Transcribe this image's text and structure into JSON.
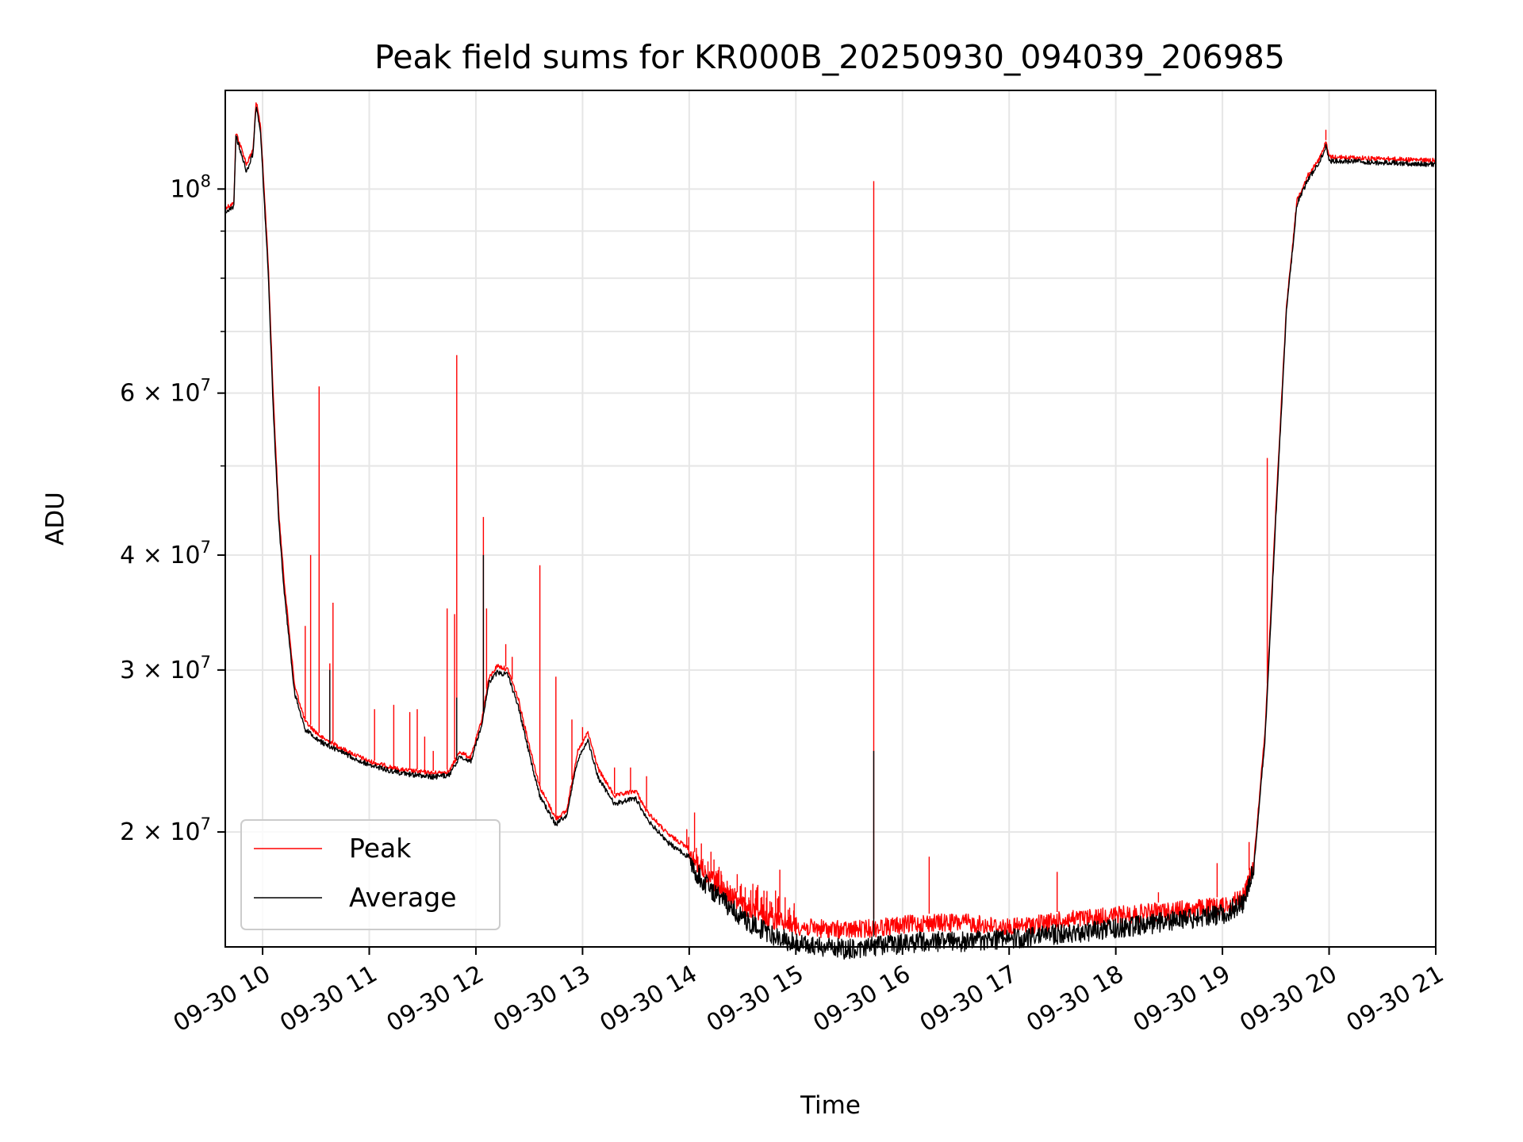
{
  "chart_data": {
    "type": "line",
    "title": "Peak field sums for KR000B_20250930_094039_206985",
    "xlabel": "Time",
    "ylabel": "ADU",
    "yscale": "log",
    "xlim": [
      9.65,
      21.0
    ],
    "ylim": [
      15000000,
      128000000
    ],
    "grid": true,
    "x_ticks": [
      {
        "value": 10,
        "label": "09-30 10"
      },
      {
        "value": 11,
        "label": "09-30 11"
      },
      {
        "value": 12,
        "label": "09-30 12"
      },
      {
        "value": 13,
        "label": "09-30 13"
      },
      {
        "value": 14,
        "label": "09-30 14"
      },
      {
        "value": 15,
        "label": "09-30 15"
      },
      {
        "value": 16,
        "label": "09-30 16"
      },
      {
        "value": 17,
        "label": "09-30 17"
      },
      {
        "value": 18,
        "label": "09-30 18"
      },
      {
        "value": 19,
        "label": "09-30 19"
      },
      {
        "value": 20,
        "label": "09-30 20"
      },
      {
        "value": 21,
        "label": "09-30 21"
      }
    ],
    "y_ticks": [
      {
        "value": 20000000,
        "mantissa": "2 × 10",
        "exp": "7"
      },
      {
        "value": 30000000,
        "mantissa": "3 × 10",
        "exp": "7"
      },
      {
        "value": 40000000,
        "mantissa": "4 × 10",
        "exp": "7"
      },
      {
        "value": 60000000,
        "mantissa": "6 × 10",
        "exp": "7"
      },
      {
        "value": 100000000,
        "mantissa": "10",
        "exp": "8"
      }
    ],
    "y_minor_ticks": [
      50000000,
      70000000,
      80000000,
      90000000
    ],
    "legend": {
      "placement": "lower-left",
      "entries": [
        "Peak",
        "Average"
      ]
    },
    "series": [
      {
        "name": "Peak",
        "color": "#ff0000",
        "noise": 0.09,
        "points": [
          [
            9.65,
            96000000
          ],
          [
            9.73,
            97000000
          ],
          [
            9.75,
            116000000
          ],
          [
            9.85,
            107000000
          ],
          [
            9.91,
            111000000
          ],
          [
            9.94,
            125000000
          ],
          [
            9.98,
            118000000
          ],
          [
            10.05,
            85000000
          ],
          [
            10.1,
            60000000
          ],
          [
            10.15,
            45000000
          ],
          [
            10.2,
            38000000
          ],
          [
            10.3,
            29000000
          ],
          [
            10.4,
            26500000
          ],
          [
            10.55,
            25500000
          ],
          [
            10.8,
            24600000
          ],
          [
            11.0,
            24000000
          ],
          [
            11.3,
            23500000
          ],
          [
            11.6,
            23300000
          ],
          [
            11.75,
            23400000
          ],
          [
            11.85,
            24600000
          ],
          [
            11.95,
            24200000
          ],
          [
            12.05,
            26500000
          ],
          [
            12.12,
            29500000
          ],
          [
            12.2,
            30500000
          ],
          [
            12.3,
            30200000
          ],
          [
            12.4,
            28000000
          ],
          [
            12.5,
            25000000
          ],
          [
            12.6,
            22500000
          ],
          [
            12.75,
            20800000
          ],
          [
            12.85,
            21200000
          ],
          [
            12.95,
            24500000
          ],
          [
            13.05,
            25800000
          ],
          [
            13.15,
            23500000
          ],
          [
            13.3,
            22000000
          ],
          [
            13.5,
            22300000
          ],
          [
            13.6,
            21200000
          ],
          [
            13.8,
            20000000
          ],
          [
            14.0,
            19300000
          ],
          [
            14.2,
            18200000
          ],
          [
            14.5,
            17000000
          ],
          [
            14.8,
            16400000
          ],
          [
            15.1,
            16100000
          ],
          [
            15.5,
            16000000
          ],
          [
            15.75,
            16100000
          ],
          [
            16.2,
            16300000
          ],
          [
            16.6,
            16300000
          ],
          [
            17.0,
            16100000
          ],
          [
            17.5,
            16400000
          ],
          [
            18.0,
            16600000
          ],
          [
            18.5,
            16800000
          ],
          [
            19.0,
            17000000
          ],
          [
            19.2,
            17400000
          ],
          [
            19.3,
            19000000
          ],
          [
            19.4,
            26000000
          ],
          [
            19.5,
            45000000
          ],
          [
            19.6,
            75000000
          ],
          [
            19.7,
            98000000
          ],
          [
            19.8,
            104000000
          ],
          [
            19.9,
            108000000
          ],
          [
            19.97,
            113000000
          ],
          [
            20.0,
            109000000
          ],
          [
            21.0,
            108000000
          ]
        ],
        "spikes": [
          [
            10.4,
            33500000
          ],
          [
            10.45,
            40000000
          ],
          [
            10.53,
            61000000
          ],
          [
            10.63,
            30500000
          ],
          [
            10.66,
            35500000
          ],
          [
            11.05,
            27200000
          ],
          [
            11.23,
            27500000
          ],
          [
            11.38,
            27000000
          ],
          [
            11.45,
            27200000
          ],
          [
            11.52,
            25400000
          ],
          [
            11.6,
            24500000
          ],
          [
            11.73,
            35000000
          ],
          [
            11.8,
            34500000
          ],
          [
            11.82,
            66000000
          ],
          [
            12.07,
            44000000
          ],
          [
            12.1,
            35000000
          ],
          [
            12.28,
            32000000
          ],
          [
            12.34,
            31000000
          ],
          [
            12.6,
            39000000
          ],
          [
            12.75,
            29500000
          ],
          [
            12.9,
            26500000
          ],
          [
            13.0,
            26000000
          ],
          [
            13.18,
            23000000
          ],
          [
            13.3,
            23500000
          ],
          [
            13.45,
            23500000
          ],
          [
            13.6,
            23000000
          ],
          [
            14.05,
            21000000
          ],
          [
            14.45,
            18000000
          ],
          [
            14.85,
            18200000
          ],
          [
            15.73,
            102000000
          ],
          [
            16.25,
            18800000
          ],
          [
            17.45,
            18100000
          ],
          [
            18.4,
            17200000
          ],
          [
            18.95,
            18500000
          ],
          [
            19.25,
            19500000
          ],
          [
            19.42,
            51000000
          ],
          [
            19.97,
            116000000
          ]
        ]
      },
      {
        "name": "Average",
        "color": "#000000",
        "noise": 0.05,
        "points": [
          [
            9.65,
            95000000
          ],
          [
            9.73,
            96000000
          ],
          [
            9.75,
            115000000
          ],
          [
            9.85,
            105000000
          ],
          [
            9.91,
            110000000
          ],
          [
            9.94,
            124000000
          ],
          [
            9.98,
            116000000
          ],
          [
            10.05,
            83000000
          ],
          [
            10.1,
            58000000
          ],
          [
            10.15,
            44000000
          ],
          [
            10.2,
            37000000
          ],
          [
            10.3,
            28500000
          ],
          [
            10.4,
            26000000
          ],
          [
            10.55,
            25200000
          ],
          [
            10.8,
            24400000
          ],
          [
            11.0,
            23800000
          ],
          [
            11.3,
            23300000
          ],
          [
            11.6,
            23100000
          ],
          [
            11.75,
            23200000
          ],
          [
            11.85,
            24300000
          ],
          [
            11.95,
            24000000
          ],
          [
            12.05,
            26200000
          ],
          [
            12.12,
            29200000
          ],
          [
            12.2,
            30000000
          ],
          [
            12.3,
            29800000
          ],
          [
            12.4,
            27500000
          ],
          [
            12.5,
            24500000
          ],
          [
            12.6,
            22000000
          ],
          [
            12.75,
            20500000
          ],
          [
            12.85,
            21000000
          ],
          [
            12.95,
            24000000
          ],
          [
            13.05,
            25300000
          ],
          [
            13.15,
            23000000
          ],
          [
            13.3,
            21600000
          ],
          [
            13.5,
            21900000
          ],
          [
            13.6,
            20800000
          ],
          [
            13.8,
            19600000
          ],
          [
            14.0,
            18900000
          ],
          [
            14.2,
            17800000
          ],
          [
            14.5,
            16500000
          ],
          [
            14.8,
            15800000
          ],
          [
            15.1,
            15400000
          ],
          [
            15.5,
            15300000
          ],
          [
            15.75,
            15400000
          ],
          [
            16.2,
            15600000
          ],
          [
            16.6,
            15600000
          ],
          [
            17.0,
            15700000
          ],
          [
            17.5,
            15900000
          ],
          [
            18.0,
            16100000
          ],
          [
            18.5,
            16400000
          ],
          [
            19.0,
            16700000
          ],
          [
            19.2,
            17200000
          ],
          [
            19.3,
            18800000
          ],
          [
            19.4,
            25500000
          ],
          [
            19.5,
            44000000
          ],
          [
            19.6,
            74000000
          ],
          [
            19.7,
            97000000
          ],
          [
            19.8,
            103000000
          ],
          [
            19.9,
            107000000
          ],
          [
            19.97,
            112000000
          ],
          [
            20.0,
            108000000
          ],
          [
            21.0,
            107000000
          ]
        ],
        "spikes": [
          [
            15.73,
            24500000
          ],
          [
            12.07,
            40000000
          ],
          [
            10.63,
            30000000
          ],
          [
            11.82,
            28000000
          ]
        ]
      }
    ]
  }
}
